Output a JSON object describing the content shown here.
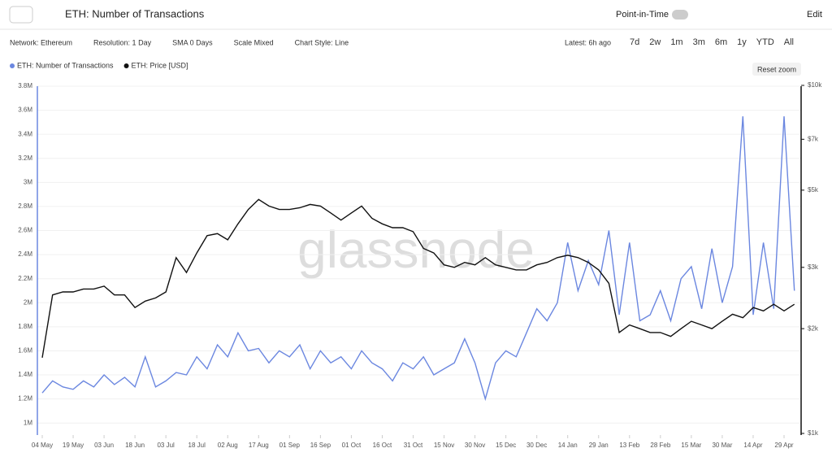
{
  "ui": {
    "title": "ETH: Number of Transactions",
    "pit": "Point-in-Time",
    "edit": "Edit",
    "controls": [
      "Network: Ethereum",
      "Resolution: 1 Day",
      "SMA 0 Days",
      "Scale Mixed",
      "Chart Style: Line"
    ],
    "latest": "Latest: 6h ago",
    "ranges": [
      "7d",
      "2w",
      "1m",
      "3m",
      "6m",
      "1y",
      "YTD",
      "All"
    ],
    "reset": "Reset zoom",
    "watermark": "glassnode"
  },
  "chart_data": {
    "type": "line",
    "categories": [
      "04 May",
      null,
      null,
      "19 May",
      null,
      null,
      "03 Jun",
      null,
      null,
      "18 Jun",
      null,
      null,
      "03 Jul",
      null,
      null,
      "18 Jul",
      null,
      null,
      "02 Aug",
      null,
      null,
      "17 Aug",
      null,
      null,
      "01 Sep",
      null,
      null,
      "16 Sep",
      null,
      null,
      "01 Oct",
      null,
      null,
      "16 Oct",
      null,
      null,
      "31 Oct",
      null,
      null,
      "15 Nov",
      null,
      null,
      "30 Nov",
      null,
      null,
      "15 Dec",
      null,
      null,
      "30 Dec",
      null,
      null,
      "14 Jan",
      null,
      null,
      "29 Jan",
      null,
      null,
      "13 Feb",
      null,
      null,
      "28 Feb",
      null,
      null,
      "15 Mar",
      null,
      null,
      "30 Mar",
      null,
      null,
      "14 Apr",
      null,
      null,
      "29 Apr",
      null
    ],
    "series": [
      {
        "name": "ETH: Number of Transactions",
        "color": "#6b87e0",
        "values": [
          1250000,
          1350000,
          1300000,
          1280000,
          1350000,
          1300000,
          1400000,
          1320000,
          1380000,
          1300000,
          1550000,
          1300000,
          1350000,
          1420000,
          1400000,
          1550000,
          1450000,
          1650000,
          1550000,
          1750000,
          1600000,
          1620000,
          1500000,
          1600000,
          1550000,
          1650000,
          1450000,
          1600000,
          1500000,
          1550000,
          1450000,
          1600000,
          1500000,
          1450000,
          1350000,
          1500000,
          1450000,
          1550000,
          1400000,
          1450000,
          1500000,
          1700000,
          1500000,
          1200000,
          1500000,
          1600000,
          1550000,
          1750000,
          1950000,
          1850000,
          2000000,
          2500000,
          2100000,
          2350000,
          2150000,
          2600000,
          1900000,
          2500000,
          1850000,
          1900000,
          2100000,
          1850000,
          2200000,
          2300000,
          1950000,
          2450000,
          2000000,
          2300000,
          3550000,
          1900000,
          2500000,
          1950000,
          3550000,
          2100000
        ]
      },
      {
        "name": "ETH: Price [USD]",
        "color": "#111111",
        "axis": "y2",
        "values": [
          1650,
          2500,
          2550,
          2550,
          2600,
          2600,
          2650,
          2500,
          2500,
          2300,
          2400,
          2450,
          2550,
          3200,
          2900,
          3300,
          3700,
          3750,
          3600,
          4000,
          4400,
          4700,
          4500,
          4400,
          4400,
          4450,
          4550,
          4500,
          4300,
          4100,
          4300,
          4500,
          4150,
          4000,
          3900,
          3900,
          3800,
          3400,
          3300,
          3050,
          3000,
          3100,
          3050,
          3200,
          3050,
          3000,
          2950,
          2950,
          3050,
          3100,
          3200,
          3250,
          3200,
          3100,
          2950,
          2700,
          1950,
          2050,
          2000,
          1950,
          1950,
          1900,
          2000,
          2100,
          2050,
          2000,
          2100,
          2200,
          2150,
          2300,
          2250,
          2350,
          2250,
          2350
        ]
      }
    ],
    "ylim": [
      900000,
      3800000
    ],
    "yticks": [
      {
        "value": 1000000,
        "label": "1M"
      },
      {
        "value": 1200000,
        "label": "1.2M"
      },
      {
        "value": 1400000,
        "label": "1.4M"
      },
      {
        "value": 1600000,
        "label": "1.6M"
      },
      {
        "value": 1800000,
        "label": "1.8M"
      },
      {
        "value": 2000000,
        "label": "2M"
      },
      {
        "value": 2200000,
        "label": "2.2M"
      },
      {
        "value": 2400000,
        "label": "2.4M"
      },
      {
        "value": 2600000,
        "label": "2.6M"
      },
      {
        "value": 2800000,
        "label": "2.8M"
      },
      {
        "value": 3000000,
        "label": "3M"
      },
      {
        "value": 3200000,
        "label": "3.2M"
      },
      {
        "value": 3400000,
        "label": "3.4M"
      },
      {
        "value": 3600000,
        "label": "3.6M"
      },
      {
        "value": 3800000,
        "label": "3.8M"
      }
    ],
    "y2lim": [
      1000,
      10000
    ],
    "y2log": true,
    "y2ticks": [
      {
        "value": 1000,
        "label": "$1k"
      },
      {
        "value": 2000,
        "label": "$2k"
      },
      {
        "value": 3000,
        "label": "$3k"
      },
      {
        "value": 5000,
        "label": "$5k"
      },
      {
        "value": 7000,
        "label": "$7k"
      },
      {
        "value": 10000,
        "label": "$10k"
      }
    ],
    "grid": true,
    "legend": "top-left"
  }
}
